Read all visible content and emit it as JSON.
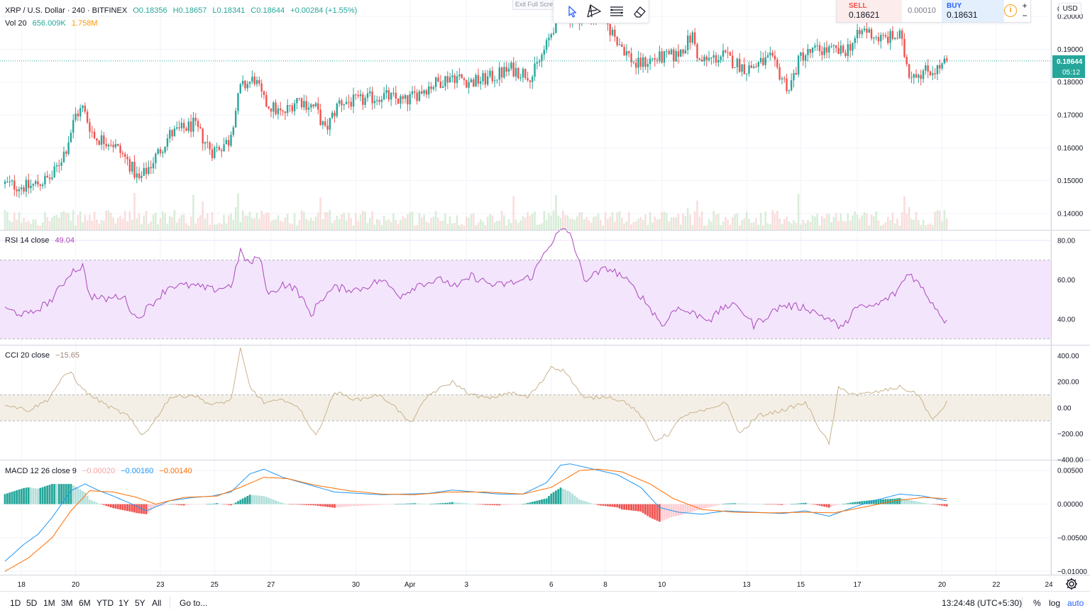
{
  "legends": {
    "main": {
      "symbol": "XRP / U.S. Dollar · 240 · BITFINEX",
      "open": "O0.18356",
      "high": "H0.18657",
      "low": "L0.18341",
      "close": "C0.18644",
      "change": "+0.00284 (+1.55%)"
    },
    "vol": {
      "label": "Vol 20",
      "v1": "656.009K",
      "v2": "1.758M"
    },
    "rsi": {
      "label": "RSI 14 close",
      "value": "49.04"
    },
    "cci": {
      "label": "CCI 20 close",
      "value": "−15.65"
    },
    "macd": {
      "label": "MACD 12 26 close 9",
      "hist": "−0.00020",
      "macd": "−0.00160",
      "signal": "−0.00140"
    }
  },
  "toolbar": {
    "exit_fullscreen": "Exit Full Screen",
    "icons": [
      "cursor-icon",
      "trend-line-icon",
      "fib-lines-icon",
      "eraser-icon"
    ]
  },
  "trade": {
    "sell_label": "SELL",
    "sell_price": "0.18621",
    "spread": "0.00010",
    "buy_label": "BUY",
    "buy_price": "0.18631",
    "info": "i",
    "plus": "+",
    "minus": "−"
  },
  "currency": "USD",
  "price_scale": {
    "labels": [
      "0.20000",
      "0.19000",
      "0.18000",
      "0.17000",
      "0.16000",
      "0.15000",
      "0.14000"
    ],
    "top_label": "0",
    "current_price": "0.18644",
    "countdown": "05:12"
  },
  "rsi_scale": [
    "80.00",
    "60.00",
    "40.00"
  ],
  "cci_scale": [
    "400.00",
    "200.00",
    "0.00",
    "−200.00",
    "−400.00"
  ],
  "macd_scale": [
    "0.00500",
    "0.00000",
    "−0.00500",
    "−0.01000"
  ],
  "time_axis": [
    "18",
    "20",
    "23",
    "25",
    "27",
    "30",
    "Apr",
    "3",
    "6",
    "8",
    "10",
    "13",
    "15",
    "17",
    "20",
    "22",
    "24"
  ],
  "bottom": {
    "ranges": [
      "1D",
      "5D",
      "1M",
      "3M",
      "6M",
      "YTD",
      "1Y",
      "5Y",
      "All"
    ],
    "goto": "Go to...",
    "time": "13:24:48 (UTC+5:30)",
    "percent": "%",
    "log": "log",
    "auto": "auto"
  },
  "colors": {
    "up": "#26a69a",
    "down": "#ef5350",
    "rsi": "#ab47bc",
    "rsi_band": "#f3e5fc",
    "cci": "#c8b28c",
    "cci_band": "#f4efe6",
    "macd": "#2196f3",
    "signal": "#ff6d00",
    "price_line": "#26a69a"
  },
  "chart_data": [
    {
      "type": "candlestick",
      "title": "XRP / U.S. Dollar · 240 · BITFINEX",
      "x_ticks": [
        "18",
        "20",
        "23",
        "25",
        "27",
        "30",
        "Apr",
        "3",
        "6",
        "8",
        "10",
        "13",
        "15",
        "17",
        "20",
        "22",
        "24"
      ],
      "ylim": [
        0.135,
        0.205
      ],
      "anchors": [
        [
          0,
          0.149
        ],
        [
          10,
          0.148
        ],
        [
          20,
          0.151
        ],
        [
          26,
          0.16
        ],
        [
          30,
          0.17
        ],
        [
          33,
          0.172
        ],
        [
          38,
          0.163
        ],
        [
          45,
          0.162
        ],
        [
          52,
          0.156
        ],
        [
          57,
          0.15
        ],
        [
          62,
          0.155
        ],
        [
          70,
          0.164
        ],
        [
          80,
          0.167
        ],
        [
          88,
          0.159
        ],
        [
          95,
          0.162
        ],
        [
          100,
          0.178
        ],
        [
          106,
          0.181
        ],
        [
          110,
          0.174
        ],
        [
          118,
          0.17
        ],
        [
          124,
          0.175
        ],
        [
          132,
          0.172
        ],
        [
          136,
          0.165
        ],
        [
          142,
          0.174
        ],
        [
          150,
          0.174
        ],
        [
          160,
          0.176
        ],
        [
          170,
          0.174
        ],
        [
          178,
          0.178
        ],
        [
          190,
          0.182
        ],
        [
          198,
          0.18
        ],
        [
          205,
          0.181
        ],
        [
          215,
          0.184
        ],
        [
          224,
          0.182
        ],
        [
          230,
          0.191
        ],
        [
          236,
          0.203
        ],
        [
          240,
          0.2
        ],
        [
          246,
          0.2
        ],
        [
          253,
          0.2
        ],
        [
          260,
          0.193
        ],
        [
          268,
          0.185
        ],
        [
          275,
          0.187
        ],
        [
          285,
          0.188
        ],
        [
          292,
          0.194
        ],
        [
          295,
          0.186
        ],
        [
          305,
          0.188
        ],
        [
          315,
          0.184
        ],
        [
          325,
          0.187
        ],
        [
          333,
          0.178
        ],
        [
          338,
          0.188
        ],
        [
          346,
          0.19
        ],
        [
          356,
          0.189
        ],
        [
          365,
          0.196
        ],
        [
          372,
          0.193
        ],
        [
          380,
          0.194
        ],
        [
          384,
          0.183
        ],
        [
          389,
          0.183
        ],
        [
          396,
          0.184
        ],
        [
          400,
          0.186
        ]
      ]
    },
    {
      "type": "bar",
      "title": "Vol 20",
      "values_shown": [
        "656.009K",
        "1.758M"
      ]
    },
    {
      "type": "line",
      "title": "RSI 14 close",
      "ylim": [
        27,
        85
      ],
      "bands": [
        30,
        70
      ],
      "anchors": [
        [
          0,
          45
        ],
        [
          10,
          42
        ],
        [
          20,
          50
        ],
        [
          28,
          64
        ],
        [
          33,
          67
        ],
        [
          36,
          52
        ],
        [
          42,
          50
        ],
        [
          50,
          52
        ],
        [
          56,
          40
        ],
        [
          60,
          45
        ],
        [
          70,
          57
        ],
        [
          80,
          57
        ],
        [
          88,
          55
        ],
        [
          96,
          57
        ],
        [
          100,
          74
        ],
        [
          104,
          68
        ],
        [
          108,
          72
        ],
        [
          112,
          52
        ],
        [
          118,
          58
        ],
        [
          124,
          55
        ],
        [
          130,
          42
        ],
        [
          134,
          50
        ],
        [
          140,
          56
        ],
        [
          150,
          55
        ],
        [
          160,
          60
        ],
        [
          168,
          52
        ],
        [
          176,
          58
        ],
        [
          186,
          60
        ],
        [
          192,
          56
        ],
        [
          198,
          62
        ],
        [
          208,
          57
        ],
        [
          218,
          59
        ],
        [
          224,
          62
        ],
        [
          230,
          76
        ],
        [
          236,
          85
        ],
        [
          240,
          84
        ],
        [
          246,
          60
        ],
        [
          256,
          66
        ],
        [
          262,
          62
        ],
        [
          270,
          52
        ],
        [
          280,
          36
        ],
        [
          284,
          46
        ],
        [
          300,
          40
        ],
        [
          306,
          47
        ],
        [
          312,
          46
        ],
        [
          318,
          37
        ],
        [
          330,
          47
        ],
        [
          340,
          46
        ],
        [
          350,
          40
        ],
        [
          356,
          35
        ],
        [
          360,
          45
        ],
        [
          370,
          47
        ],
        [
          378,
          53
        ],
        [
          384,
          64
        ],
        [
          390,
          55
        ],
        [
          400,
          38
        ],
        [
          410,
          37
        ],
        [
          420,
          43
        ],
        [
          426,
          49
        ]
      ]
    },
    {
      "type": "line",
      "title": "CCI 20 close",
      "ylim": [
        -400,
        480
      ],
      "bands": [
        -100,
        100
      ],
      "anchors": [
        [
          0,
          30
        ],
        [
          10,
          -20
        ],
        [
          18,
          60
        ],
        [
          24,
          220
        ],
        [
          28,
          280
        ],
        [
          32,
          160
        ],
        [
          36,
          100
        ],
        [
          44,
          10
        ],
        [
          52,
          -60
        ],
        [
          58,
          -210
        ],
        [
          62,
          -140
        ],
        [
          70,
          80
        ],
        [
          80,
          100
        ],
        [
          88,
          20
        ],
        [
          96,
          60
        ],
        [
          100,
          450
        ],
        [
          104,
          160
        ],
        [
          110,
          40
        ],
        [
          120,
          60
        ],
        [
          126,
          -30
        ],
        [
          132,
          -220
        ],
        [
          140,
          120
        ],
        [
          150,
          60
        ],
        [
          158,
          100
        ],
        [
          164,
          40
        ],
        [
          172,
          -120
        ],
        [
          180,
          100
        ],
        [
          190,
          200
        ],
        [
          198,
          100
        ],
        [
          206,
          70
        ],
        [
          214,
          120
        ],
        [
          222,
          80
        ],
        [
          228,
          200
        ],
        [
          232,
          320
        ],
        [
          238,
          280
        ],
        [
          246,
          70
        ],
        [
          256,
          90
        ],
        [
          264,
          40
        ],
        [
          270,
          -60
        ],
        [
          276,
          -250
        ],
        [
          282,
          -200
        ],
        [
          288,
          -60
        ],
        [
          300,
          -10
        ],
        [
          306,
          50
        ],
        [
          312,
          -200
        ],
        [
          320,
          -60
        ],
        [
          330,
          -20
        ],
        [
          340,
          40
        ],
        [
          346,
          -160
        ],
        [
          350,
          -280
        ],
        [
          354,
          150
        ],
        [
          362,
          100
        ],
        [
          370,
          120
        ],
        [
          380,
          160
        ],
        [
          388,
          100
        ],
        [
          394,
          -100
        ],
        [
          400,
          40
        ],
        [
          404,
          -200
        ],
        [
          410,
          -380
        ],
        [
          418,
          -160
        ],
        [
          424,
          -30
        ],
        [
          430,
          -15
        ]
      ]
    },
    {
      "type": "line",
      "title": "MACD 12 26 close 9",
      "ylim": [
        -0.0105,
        0.0065
      ],
      "series": [
        {
          "name": "MACD",
          "anchors": [
            [
              0,
              -0.0085
            ],
            [
              8,
              -0.006
            ],
            [
              14,
              -0.0045
            ],
            [
              20,
              -0.002
            ],
            [
              28,
              0.002
            ],
            [
              34,
              0.003
            ],
            [
              40,
              0.002
            ],
            [
              46,
              0.0012
            ],
            [
              54,
              0.0
            ],
            [
              60,
              -0.001
            ],
            [
              70,
              0.0005
            ],
            [
              80,
              0.001
            ],
            [
              88,
              0.0012
            ],
            [
              96,
              0.0018
            ],
            [
              104,
              0.0045
            ],
            [
              110,
              0.0052
            ],
            [
              118,
              0.004
            ],
            [
              130,
              0.0028
            ],
            [
              140,
              0.0018
            ],
            [
              150,
              0.0016
            ],
            [
              160,
              0.0014
            ],
            [
              170,
              0.0015
            ],
            [
              180,
              0.0016
            ],
            [
              190,
              0.0021
            ],
            [
              200,
              0.0018
            ],
            [
              210,
              0.0015
            ],
            [
              220,
              0.0015
            ],
            [
              230,
              0.0032
            ],
            [
              236,
              0.0058
            ],
            [
              240,
              0.006
            ],
            [
              250,
              0.0052
            ],
            [
              260,
              0.0044
            ],
            [
              270,
              0.0025
            ],
            [
              278,
              -0.0005
            ],
            [
              286,
              -0.0012
            ],
            [
              296,
              -0.0015
            ],
            [
              306,
              -0.001
            ],
            [
              318,
              -0.0012
            ],
            [
              330,
              -0.0014
            ],
            [
              340,
              -0.001
            ],
            [
              350,
              -0.0018
            ],
            [
              360,
              -0.0005
            ],
            [
              370,
              0.0006
            ],
            [
              380,
              0.0015
            ],
            [
              390,
              0.0012
            ],
            [
              400,
              0.0005
            ],
            [
              410,
              -0.001
            ],
            [
              420,
              -0.0016
            ],
            [
              426,
              -0.0016
            ]
          ]
        },
        {
          "name": "Signal",
          "anchors": [
            [
              0,
              -0.01
            ],
            [
              10,
              -0.008
            ],
            [
              20,
              -0.005
            ],
            [
              28,
              -0.001
            ],
            [
              36,
              0.002
            ],
            [
              46,
              0.0018
            ],
            [
              56,
              0.001
            ],
            [
              64,
              0.0
            ],
            [
              76,
              0.001
            ],
            [
              90,
              0.0012
            ],
            [
              100,
              0.0025
            ],
            [
              110,
              0.004
            ],
            [
              120,
              0.0038
            ],
            [
              132,
              0.0028
            ],
            [
              146,
              0.002
            ],
            [
              160,
              0.0015
            ],
            [
              174,
              0.0014
            ],
            [
              188,
              0.0018
            ],
            [
              204,
              0.0018
            ],
            [
              220,
              0.0015
            ],
            [
              232,
              0.0025
            ],
            [
              244,
              0.005
            ],
            [
              252,
              0.0052
            ],
            [
              262,
              0.0048
            ],
            [
              274,
              0.003
            ],
            [
              284,
              0.0008
            ],
            [
              296,
              -0.0008
            ],
            [
              310,
              -0.0012
            ],
            [
              326,
              -0.0013
            ],
            [
              340,
              -0.0012
            ],
            [
              352,
              -0.0013
            ],
            [
              364,
              -0.0005
            ],
            [
              378,
              0.0005
            ],
            [
              390,
              0.001
            ],
            [
              402,
              0.0008
            ],
            [
              414,
              -0.0005
            ],
            [
              426,
              -0.0014
            ]
          ]
        }
      ]
    }
  ]
}
